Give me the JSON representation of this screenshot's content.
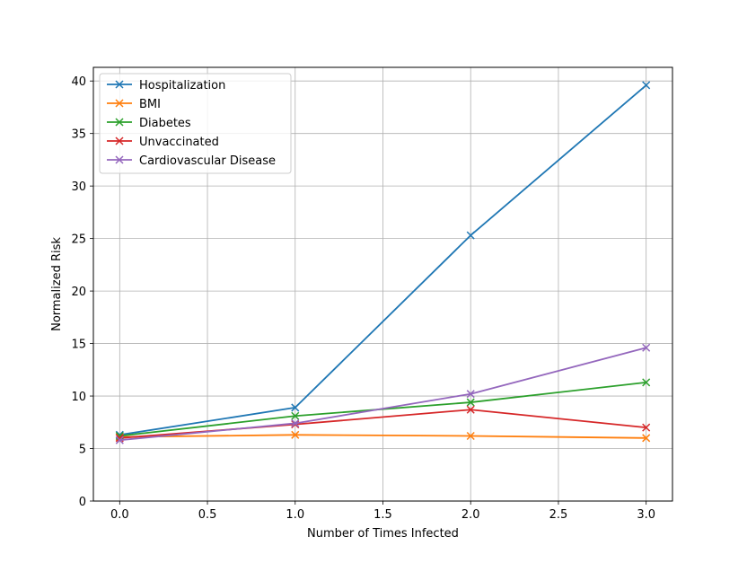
{
  "chart_data": {
    "type": "line",
    "title": "",
    "xlabel": "Number of Times Infected",
    "ylabel": "Normalized Risk",
    "xlim": [
      -0.15,
      3.15
    ],
    "ylim": [
      0,
      41.3
    ],
    "xticks": [
      0.0,
      0.5,
      1.0,
      1.5,
      2.0,
      2.5,
      3.0
    ],
    "xtick_labels": [
      "0.0",
      "0.5",
      "1.0",
      "1.5",
      "2.0",
      "2.5",
      "3.0"
    ],
    "yticks": [
      0,
      5,
      10,
      15,
      20,
      25,
      30,
      35,
      40
    ],
    "ytick_labels": [
      "0",
      "5",
      "10",
      "15",
      "20",
      "25",
      "30",
      "35",
      "40"
    ],
    "grid": true,
    "legend_position": "top-left",
    "marker": "x",
    "x": [
      0,
      1,
      2,
      3
    ],
    "series": [
      {
        "name": "Hospitalization",
        "color": "#1f77b4",
        "values": [
          6.3,
          8.9,
          25.3,
          39.6
        ]
      },
      {
        "name": "BMI",
        "color": "#ff7f0e",
        "values": [
          6.1,
          6.3,
          6.2,
          6.0
        ]
      },
      {
        "name": "Diabetes",
        "color": "#2ca02c",
        "values": [
          6.2,
          8.1,
          9.4,
          11.3
        ]
      },
      {
        "name": "Unvaccinated",
        "color": "#d62728",
        "values": [
          6.0,
          7.3,
          8.7,
          7.0
        ]
      },
      {
        "name": "Cardiovascular Disease",
        "color": "#9467bd",
        "values": [
          5.8,
          7.4,
          10.2,
          14.6
        ]
      }
    ]
  }
}
